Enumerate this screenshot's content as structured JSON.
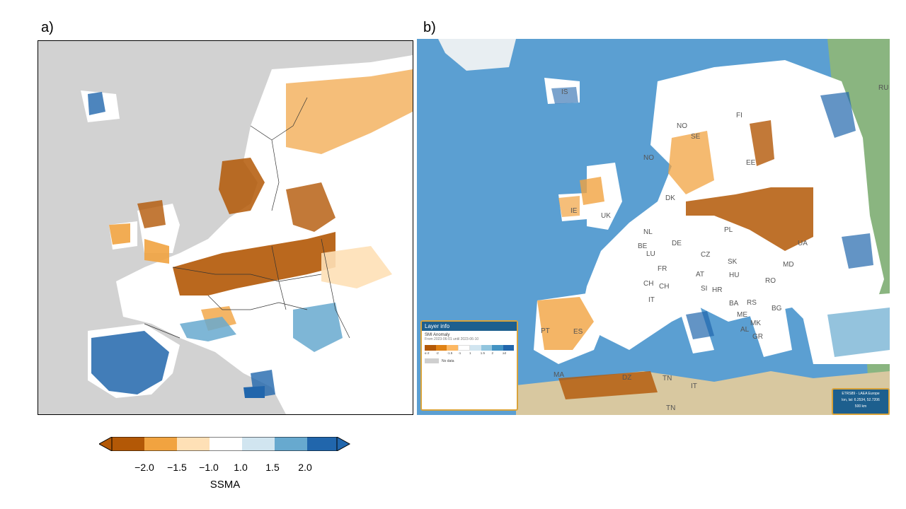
{
  "panels": {
    "a": {
      "label": "a)"
    },
    "b": {
      "label": "b)"
    }
  },
  "colors": {
    "dry_strong": "#b35806",
    "dry_mid": "#f1a340",
    "dry_weak": "#fee0b6",
    "neutral": "#ffffff",
    "wet_weak": "#d1e5f0",
    "wet_mid": "#67a9cf",
    "wet_strong": "#2166ac",
    "land_nodata": "#d2d2d2",
    "sea": "#5b9fd2"
  },
  "colorbar": {
    "label": "SSMA",
    "ticks": [
      "−2.0",
      "−1.5",
      "−1.0",
      "1.0",
      "1.5",
      "2.0"
    ]
  },
  "map_b": {
    "country_codes": [
      "IS",
      "FI",
      "NO",
      "SE",
      "NO",
      "EE",
      "DK",
      "IE",
      "UK",
      "PL",
      "NL",
      "BE",
      "DE",
      "CZ",
      "LU",
      "UA",
      "SK",
      "FR",
      "AT",
      "HU",
      "MD",
      "CH",
      "CH",
      "RO",
      "SI",
      "HR",
      "IT",
      "BA",
      "RS",
      "PT",
      "ES",
      "ME",
      "BG",
      "AL",
      "MK",
      "GR",
      "MA",
      "DZ",
      "TN",
      "IT",
      "TN",
      "RU"
    ],
    "layer_info": {
      "header": "Layer info",
      "title": "SMI Anomaly",
      "subtitle": "From 2023-06-01 until 2023-06-10",
      "ticks": [
        "≤-2",
        "-2",
        "-1.5",
        "-1",
        "1",
        "1.5",
        "2",
        "≥2"
      ],
      "nodata": "No data"
    },
    "scale_box": {
      "line1": "ETRS89 - LAEA Europe",
      "line2": "lon, lat: 6.2534, 52.7206",
      "line3": "500 km"
    }
  }
}
